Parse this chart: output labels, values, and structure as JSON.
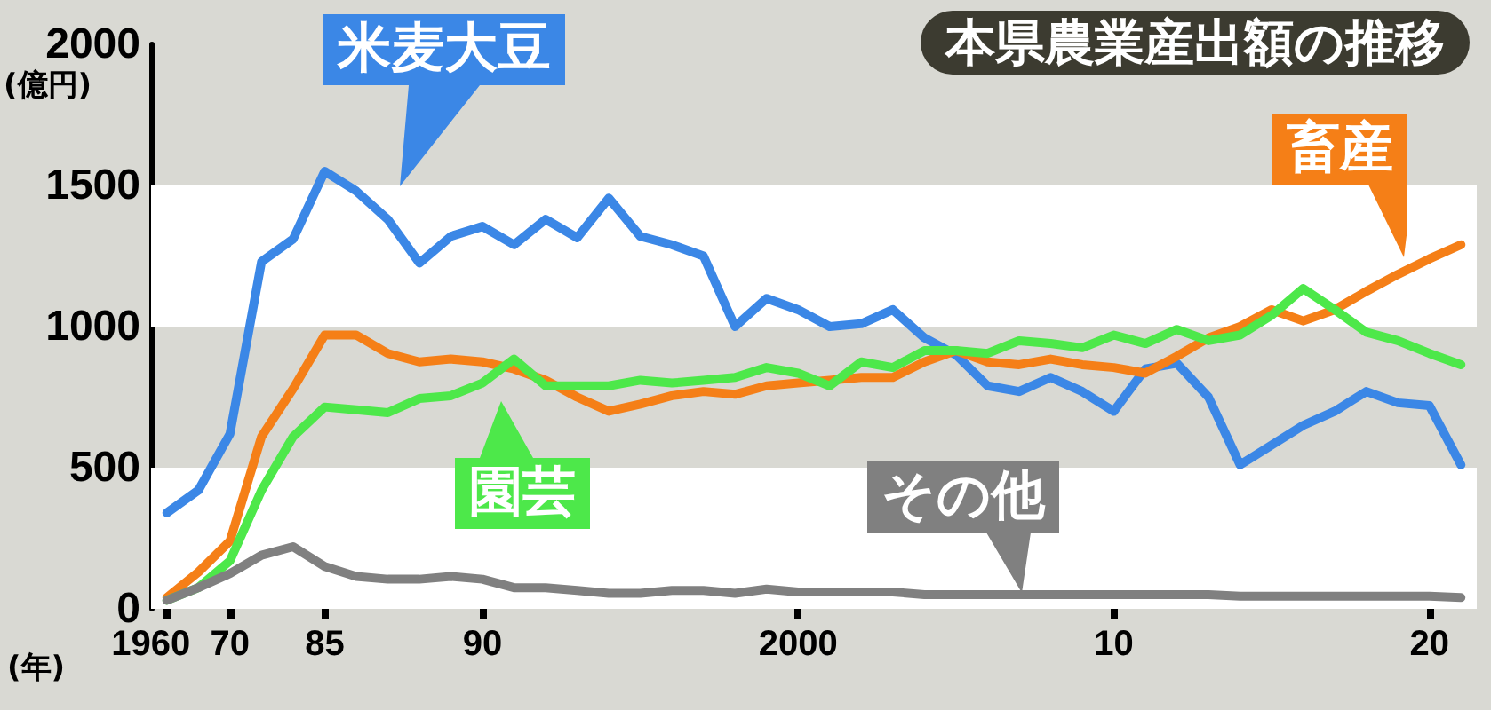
{
  "chart_data": {
    "type": "line",
    "title": "本県農業産出額の推移",
    "xlabel": "(年)",
    "ylabel": "(億円)",
    "categories": [
      "1960",
      null,
      "70",
      null,
      null,
      "85",
      null,
      null,
      null,
      null,
      "90",
      null,
      null,
      null,
      null,
      null,
      null,
      null,
      null,
      null,
      "2000",
      null,
      null,
      null,
      null,
      null,
      null,
      null,
      null,
      null,
      "10",
      null,
      null,
      null,
      null,
      null,
      null,
      null,
      null,
      null,
      "20",
      null
    ],
    "series": [
      {
        "name": "米麦大豆",
        "color": "#3b87e6",
        "values": [
          340,
          420,
          620,
          1230,
          1310,
          1550,
          1480,
          1380,
          1225,
          1320,
          1355,
          1290,
          1380,
          1315,
          1455,
          1320,
          1290,
          1250,
          1000,
          1100,
          1060,
          1000,
          1010,
          1060,
          960,
          900,
          790,
          770,
          820,
          770,
          700,
          850,
          870,
          750,
          510,
          580,
          650,
          700,
          770,
          730,
          720,
          510
        ]
      },
      {
        "name": "畜産",
        "color": "#f57f17",
        "values": [
          40,
          130,
          240,
          610,
          780,
          970,
          970,
          905,
          875,
          885,
          875,
          850,
          810,
          750,
          700,
          725,
          755,
          770,
          760,
          790,
          800,
          810,
          820,
          820,
          875,
          915,
          875,
          865,
          885,
          865,
          855,
          835,
          895,
          960,
          1000,
          1060,
          1020,
          1060,
          1125,
          1185,
          1240,
          1290
        ]
      },
      {
        "name": "園芸",
        "color": "#4de84a",
        "values": [
          30,
          75,
          170,
          420,
          610,
          715,
          705,
          695,
          745,
          755,
          800,
          885,
          790,
          790,
          790,
          810,
          800,
          810,
          820,
          855,
          835,
          790,
          875,
          855,
          915,
          915,
          905,
          950,
          940,
          925,
          970,
          940,
          990,
          950,
          970,
          1040,
          1135,
          1060,
          980,
          950,
          905,
          865
        ]
      },
      {
        "name": "その他",
        "color": "#808080",
        "values": [
          30,
          75,
          125,
          190,
          220,
          150,
          115,
          105,
          105,
          115,
          105,
          75,
          75,
          65,
          55,
          55,
          65,
          65,
          55,
          70,
          60,
          60,
          60,
          60,
          50,
          50,
          50,
          50,
          50,
          50,
          50,
          50,
          50,
          50,
          45,
          45,
          45,
          45,
          45,
          45,
          45,
          40
        ]
      }
    ],
    "ylim": [
      0,
      2000
    ],
    "yticks": [
      0,
      500,
      1000,
      1500,
      2000
    ],
    "grid": false,
    "marker": "none",
    "line_style": "solid",
    "bands": [
      {
        "axis": "y",
        "from": 0,
        "to": 500,
        "color": "#ffffff"
      },
      {
        "axis": "y",
        "from": 1000,
        "to": 1500,
        "color": "#ffffff"
      }
    ]
  }
}
